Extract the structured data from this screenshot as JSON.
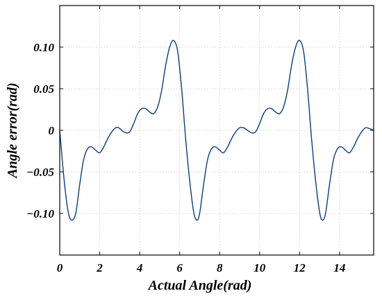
{
  "chart_data": {
    "type": "line",
    "xlabel": "Actual Angle(rad)",
    "ylabel": "Angle error(rad)",
    "xlim": [
      0,
      15.708
    ],
    "ylim": [
      -0.15,
      0.15
    ],
    "grid": true,
    "x_ticks": [
      0,
      2,
      4,
      6,
      8,
      10,
      12,
      14
    ],
    "x_tick_labels": [
      "0",
      "2",
      "4",
      "6",
      "8",
      "10",
      "12",
      "14"
    ],
    "y_ticks": [
      -0.1,
      -0.05,
      0,
      0.05,
      0.1
    ],
    "y_tick_labels": [
      "-0.10",
      "-0.05",
      "0",
      "0.05",
      "0.10"
    ],
    "line_color": "#0b3d7a",
    "series": [
      {
        "x": [
          0,
          0.2,
          0.4,
          0.58,
          0.8,
          1.0,
          1.2,
          1.4,
          1.6,
          1.8,
          2.0,
          2.2,
          2.4,
          2.6,
          2.8,
          2.95,
          3.1,
          3.3,
          3.5,
          3.7,
          3.9,
          4.1,
          4.3,
          4.5,
          4.7,
          4.9,
          5.1,
          5.3,
          5.5,
          5.7,
          5.9,
          6.1,
          6.3,
          6.5,
          6.7,
          6.86,
          7.0,
          7.2,
          7.4,
          7.6,
          7.8,
          8.0,
          8.2,
          8.4,
          8.6,
          8.8,
          9.0,
          9.2,
          9.4,
          9.6,
          9.8,
          10.0,
          10.2,
          10.4,
          10.6,
          10.8,
          11.0,
          11.2,
          11.4,
          11.6,
          11.8,
          12.0,
          12.2,
          12.4,
          12.6,
          12.8,
          13.0,
          13.14,
          13.3,
          13.5,
          13.7,
          13.9,
          14.1,
          14.3,
          14.5,
          14.7,
          14.9,
          15.1,
          15.3,
          15.5,
          15.708
        ],
        "y": [
          0.0,
          -0.055,
          -0.095,
          -0.108,
          -0.1,
          -0.065,
          -0.035,
          -0.022,
          -0.02,
          -0.024,
          -0.027,
          -0.02,
          -0.01,
          -0.002,
          0.003,
          0.003,
          0.0,
          -0.003,
          -0.002,
          0.008,
          0.02,
          0.026,
          0.026,
          0.022,
          0.02,
          0.028,
          0.048,
          0.078,
          0.1,
          0.108,
          0.095,
          0.05,
          -0.01,
          -0.06,
          -0.098,
          -0.108,
          -0.1,
          -0.065,
          -0.035,
          -0.022,
          -0.02,
          -0.024,
          -0.027,
          -0.02,
          -0.01,
          -0.002,
          0.003,
          0.003,
          0.0,
          -0.003,
          -0.002,
          0.008,
          0.02,
          0.026,
          0.026,
          0.022,
          0.02,
          0.028,
          0.048,
          0.078,
          0.1,
          0.108,
          0.095,
          0.05,
          -0.01,
          -0.06,
          -0.098,
          -0.108,
          -0.1,
          -0.065,
          -0.035,
          -0.022,
          -0.02,
          -0.024,
          -0.027,
          -0.02,
          -0.01,
          -0.002,
          0.003,
          0.002,
          0.0
        ]
      }
    ]
  }
}
